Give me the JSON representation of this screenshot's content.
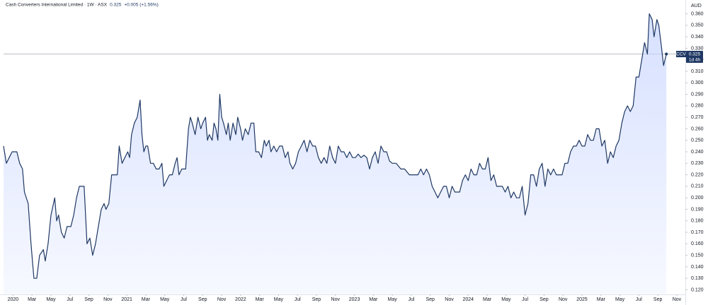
{
  "chart_data": {
    "type": "area",
    "title": "Cash Converters International Limited · 1W · ASX",
    "last_price": 0.325,
    "change": "+0.005 (+1.56%)",
    "symbol": "CCV",
    "countdown": "1d 4h",
    "currency": "AUD",
    "color": "#1f3864",
    "fill_color": "#c9d6ff",
    "grid": false,
    "x": [
      -1.0,
      -0.7,
      -0.4,
      -0.1,
      0.4,
      0.7,
      1.0,
      1.2,
      1.6,
      1.9,
      2.2,
      2.5,
      2.8,
      3.2,
      3.4,
      3.7,
      4.0,
      4.4,
      4.6,
      4.8,
      5.1,
      5.4,
      5.7,
      6.1,
      6.4,
      6.7,
      7.0,
      7.5,
      7.8,
      8.1,
      8.4,
      8.7,
      9.0,
      9.3,
      9.6,
      9.8,
      10.1,
      10.4,
      11.0,
      11.2,
      11.5,
      11.8,
      12.1,
      12.3,
      12.5,
      12.8,
      13.1,
      13.4,
      13.6,
      13.8,
      14.0,
      14.2,
      14.5,
      14.8,
      15.1,
      15.4,
      15.7,
      15.9,
      16.2,
      16.5,
      16.8,
      17.1,
      17.3,
      17.5,
      17.8,
      18.2,
      18.5,
      18.7,
      18.9,
      19.2,
      19.5,
      19.8,
      20.0,
      20.3,
      20.5,
      20.7,
      21.0,
      21.2,
      21.4,
      21.6,
      21.8,
      22.0,
      22.2,
      22.5,
      22.7,
      22.9,
      23.2,
      23.5,
      23.7,
      24.0,
      24.2,
      24.5,
      24.8,
      25.1,
      25.4,
      25.6,
      25.9,
      26.2,
      26.5,
      26.7,
      27.0,
      27.2,
      27.5,
      27.8,
      28.1,
      28.4,
      28.7,
      29.0,
      29.2,
      29.5,
      29.8,
      30.1,
      30.4,
      30.7,
      31.0,
      31.3,
      31.6,
      31.9,
      32.2,
      32.5,
      32.8,
      33.1,
      33.4,
      33.7,
      34.0,
      34.3,
      34.6,
      34.9,
      35.2,
      35.5,
      35.8,
      36.1,
      36.4,
      36.7,
      37.0,
      37.3,
      37.6,
      37.9,
      38.2,
      38.5,
      38.8,
      39.1,
      39.4,
      39.7,
      40.0,
      40.4,
      40.9,
      41.3,
      41.8,
      42.2,
      42.7,
      43.0,
      43.3,
      43.6,
      43.9,
      44.2,
      44.5,
      44.8,
      45.1,
      45.4,
      45.7,
      46.0,
      46.3,
      46.6,
      46.9,
      47.1,
      47.4,
      47.7,
      48.0,
      48.3,
      48.6,
      48.9,
      49.2,
      49.5,
      49.8,
      50.1,
      50.4,
      50.7,
      51.0,
      51.3,
      51.6,
      51.9,
      52.2,
      52.5,
      52.8,
      53.1,
      53.4,
      53.7,
      54.0,
      54.3,
      54.6,
      54.9,
      55.2,
      55.5,
      55.8,
      56.1,
      56.4,
      56.7,
      57.0,
      57.3,
      57.6,
      57.9,
      58.2,
      58.5,
      58.8,
      59.1,
      59.4,
      59.7,
      60.0,
      60.3,
      60.6,
      60.9,
      61.2,
      61.5,
      61.8,
      62.1,
      62.4,
      62.7,
      63.0,
      63.3,
      63.6,
      63.9,
      64.2,
      64.5,
      64.8,
      65.1,
      65.4,
      65.7,
      66.0,
      66.3,
      66.6,
      66.9,
      67.1,
      67.4,
      67.6,
      67.9,
      68.1,
      68.4,
      68.6,
      68.9
    ],
    "values": [
      0.245,
      0.23,
      0.235,
      0.24,
      0.24,
      0.23,
      0.225,
      0.205,
      0.195,
      0.16,
      0.13,
      0.13,
      0.15,
      0.155,
      0.145,
      0.16,
      0.185,
      0.2,
      0.18,
      0.185,
      0.17,
      0.165,
      0.175,
      0.175,
      0.185,
      0.2,
      0.21,
      0.21,
      0.16,
      0.165,
      0.15,
      0.16,
      0.175,
      0.19,
      0.195,
      0.19,
      0.195,
      0.22,
      0.22,
      0.245,
      0.23,
      0.235,
      0.24,
      0.235,
      0.255,
      0.265,
      0.27,
      0.285,
      0.255,
      0.24,
      0.245,
      0.245,
      0.23,
      0.23,
      0.225,
      0.225,
      0.23,
      0.21,
      0.215,
      0.22,
      0.22,
      0.23,
      0.235,
      0.22,
      0.225,
      0.225,
      0.26,
      0.27,
      0.265,
      0.255,
      0.27,
      0.26,
      0.265,
      0.27,
      0.25,
      0.255,
      0.25,
      0.265,
      0.26,
      0.25,
      0.29,
      0.27,
      0.265,
      0.255,
      0.265,
      0.25,
      0.265,
      0.255,
      0.27,
      0.26,
      0.25,
      0.26,
      0.255,
      0.265,
      0.265,
      0.24,
      0.24,
      0.235,
      0.25,
      0.245,
      0.25,
      0.24,
      0.245,
      0.24,
      0.245,
      0.245,
      0.235,
      0.24,
      0.23,
      0.225,
      0.23,
      0.24,
      0.245,
      0.25,
      0.24,
      0.25,
      0.245,
      0.245,
      0.235,
      0.23,
      0.235,
      0.23,
      0.245,
      0.235,
      0.23,
      0.245,
      0.24,
      0.24,
      0.235,
      0.24,
      0.235,
      0.235,
      0.238,
      0.235,
      0.237,
      0.235,
      0.225,
      0.235,
      0.24,
      0.23,
      0.245,
      0.24,
      0.24,
      0.232,
      0.23,
      0.23,
      0.225,
      0.225,
      0.22,
      0.22,
      0.22,
      0.225,
      0.22,
      0.225,
      0.22,
      0.21,
      0.205,
      0.2,
      0.205,
      0.21,
      0.21,
      0.2,
      0.21,
      0.205,
      0.205,
      0.205,
      0.215,
      0.22,
      0.215,
      0.225,
      0.22,
      0.22,
      0.23,
      0.225,
      0.225,
      0.235,
      0.215,
      0.22,
      0.21,
      0.21,
      0.21,
      0.205,
      0.21,
      0.2,
      0.205,
      0.2,
      0.2,
      0.21,
      0.185,
      0.195,
      0.22,
      0.22,
      0.21,
      0.225,
      0.23,
      0.21,
      0.225,
      0.22,
      0.225,
      0.22,
      0.22,
      0.22,
      0.23,
      0.23,
      0.24,
      0.245,
      0.245,
      0.25,
      0.245,
      0.245,
      0.255,
      0.25,
      0.25,
      0.26,
      0.26,
      0.245,
      0.25,
      0.23,
      0.24,
      0.235,
      0.245,
      0.25,
      0.265,
      0.275,
      0.28,
      0.275,
      0.28,
      0.305,
      0.305,
      0.32,
      0.335,
      0.325,
      0.36,
      0.355,
      0.34,
      0.355,
      0.35,
      0.33,
      0.315,
      0.325
    ],
    "xlim": [
      -1.0,
      70.9
    ],
    "xticks": [
      {
        "value": 0,
        "label": "2020"
      },
      {
        "value": 2,
        "label": "Mar"
      },
      {
        "value": 4,
        "label": "May"
      },
      {
        "value": 6,
        "label": "Jul"
      },
      {
        "value": 8,
        "label": "Sep"
      },
      {
        "value": 10,
        "label": "Nov"
      },
      {
        "value": 12,
        "label": "2021"
      },
      {
        "value": 14,
        "label": "Mar"
      },
      {
        "value": 16,
        "label": "May"
      },
      {
        "value": 18,
        "label": "Jul"
      },
      {
        "value": 20,
        "label": "Sep"
      },
      {
        "value": 22,
        "label": "Nov"
      },
      {
        "value": 24,
        "label": "2022"
      },
      {
        "value": 26,
        "label": "Mar"
      },
      {
        "value": 28,
        "label": "May"
      },
      {
        "value": 30,
        "label": "Jul"
      },
      {
        "value": 32,
        "label": "Sep"
      },
      {
        "value": 34,
        "label": "Nov"
      },
      {
        "value": 36,
        "label": "2023"
      },
      {
        "value": 38,
        "label": "Mar"
      },
      {
        "value": 40,
        "label": "May"
      },
      {
        "value": 42,
        "label": "Jul"
      },
      {
        "value": 44,
        "label": "Sep"
      },
      {
        "value": 46,
        "label": "Nov"
      },
      {
        "value": 48,
        "label": "2024"
      },
      {
        "value": 50,
        "label": "Mar"
      },
      {
        "value": 52,
        "label": "May"
      },
      {
        "value": 54,
        "label": "Jul"
      },
      {
        "value": 56,
        "label": "Sep"
      },
      {
        "value": 58,
        "label": "Nov"
      },
      {
        "value": 60,
        "label": "2025"
      },
      {
        "value": 62,
        "label": "Mar"
      },
      {
        "value": 64,
        "label": "May"
      },
      {
        "value": 66,
        "label": "Jul"
      },
      {
        "value": 68,
        "label": "Sep"
      },
      {
        "value": 70,
        "label": "Nov"
      }
    ],
    "ylim": [
      0.116,
      0.372
    ],
    "yticks": [
      {
        "value": 0.12,
        "label": "0.120"
      },
      {
        "value": 0.13,
        "label": "0.130"
      },
      {
        "value": 0.14,
        "label": "0.140"
      },
      {
        "value": 0.15,
        "label": "0.150"
      },
      {
        "value": 0.16,
        "label": "0.160"
      },
      {
        "value": 0.17,
        "label": "0.170"
      },
      {
        "value": 0.18,
        "label": "0.180"
      },
      {
        "value": 0.19,
        "label": "0.190"
      },
      {
        "value": 0.2,
        "label": "0.200"
      },
      {
        "value": 0.21,
        "label": "0.210"
      },
      {
        "value": 0.22,
        "label": "0.220"
      },
      {
        "value": 0.23,
        "label": "0.230"
      },
      {
        "value": 0.24,
        "label": "0.240"
      },
      {
        "value": 0.25,
        "label": "0.250"
      },
      {
        "value": 0.26,
        "label": "0.260"
      },
      {
        "value": 0.27,
        "label": "0.270"
      },
      {
        "value": 0.28,
        "label": "0.280"
      },
      {
        "value": 0.29,
        "label": "0.290"
      },
      {
        "value": 0.3,
        "label": "0.300"
      },
      {
        "value": 0.31,
        "label": "0.310"
      },
      {
        "value": 0.32,
        "label": "0.320"
      },
      {
        "value": 0.33,
        "label": "0.330"
      },
      {
        "value": 0.34,
        "label": "0.340"
      },
      {
        "value": 0.35,
        "label": "0.350"
      },
      {
        "value": 0.36,
        "label": "0.360"
      }
    ]
  }
}
